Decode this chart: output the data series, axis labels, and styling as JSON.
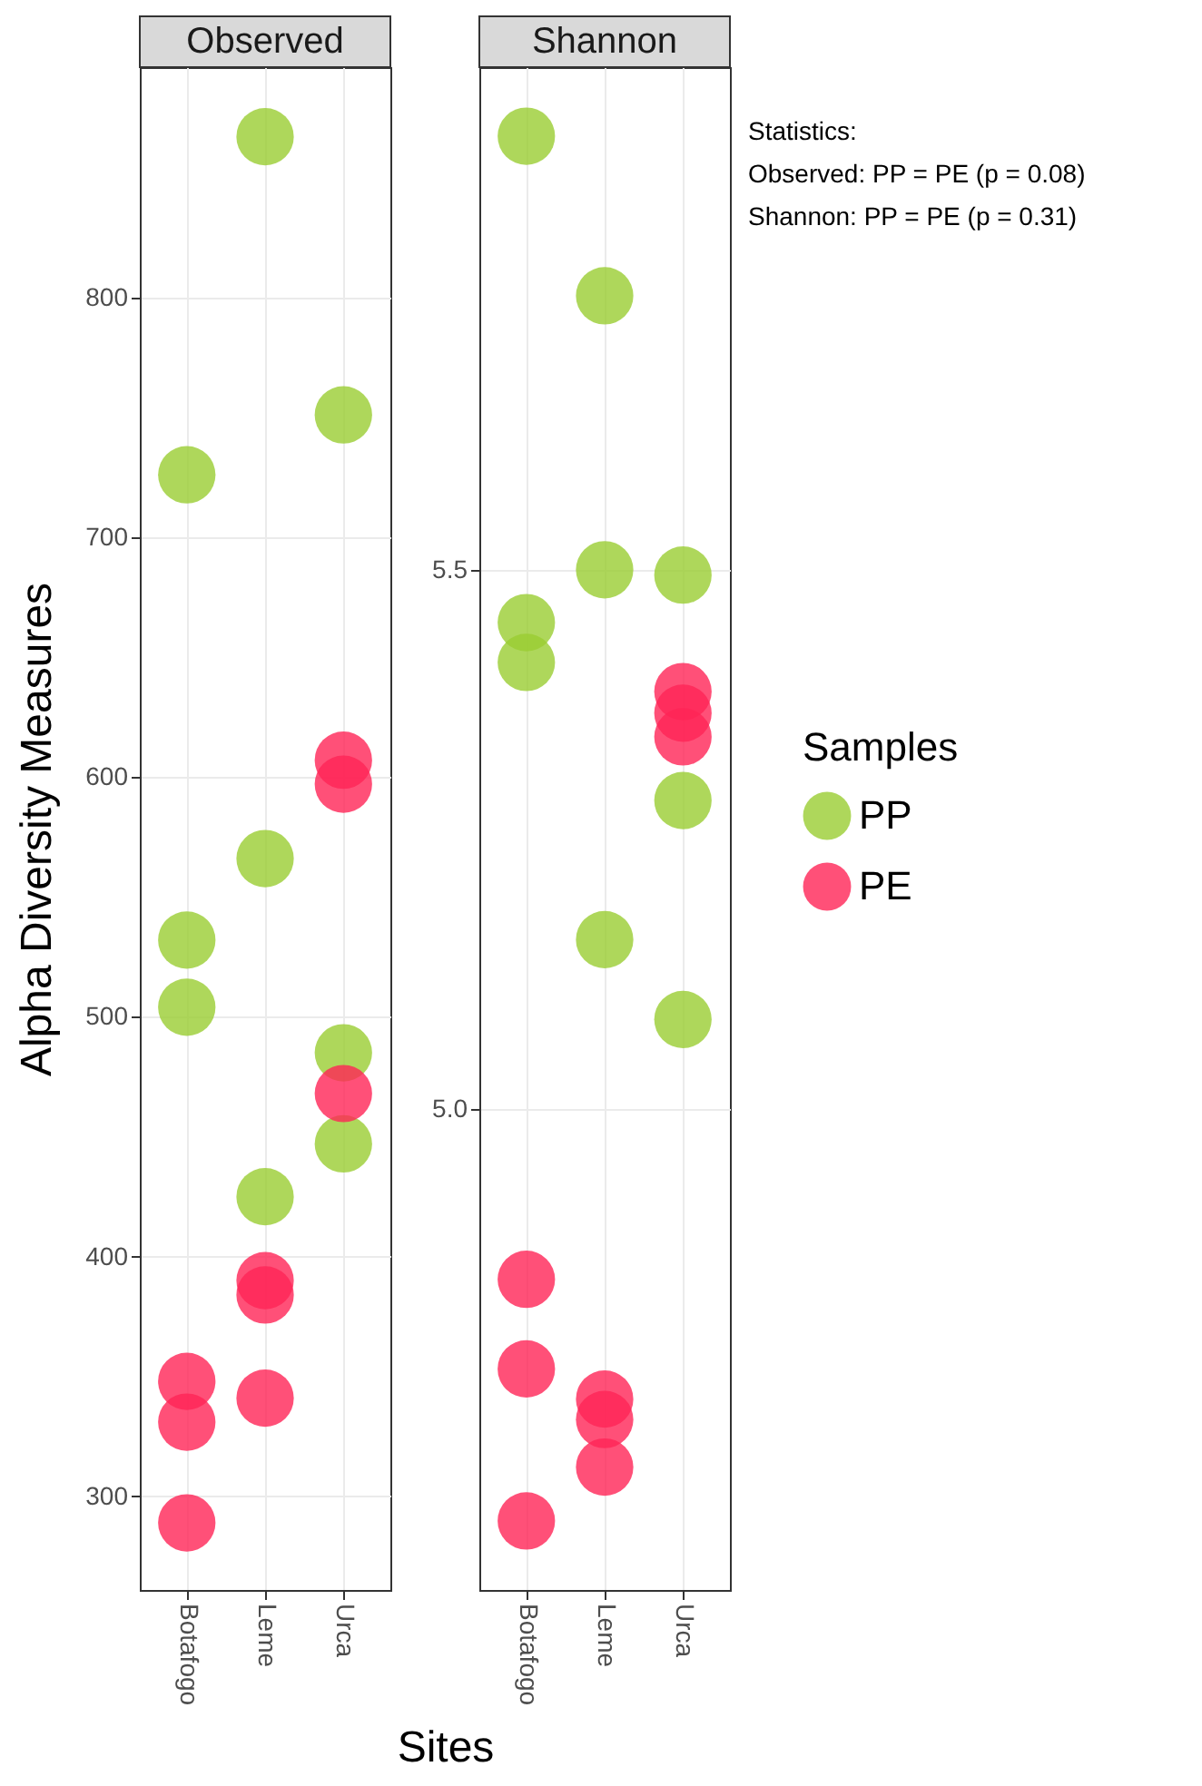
{
  "chart_data": [
    {
      "type": "scatter",
      "title": "Observed",
      "ylabel": "Alpha Diversity Measures",
      "xlabel": "Sites",
      "categories": [
        "Botafogo",
        "Leme",
        "Urca"
      ],
      "ylim": [
        261,
        896
      ],
      "yticks": [
        300,
        400,
        500,
        600,
        700,
        800
      ],
      "grid": true,
      "marker": "circle",
      "legend": "right",
      "series": [
        {
          "name": "PP",
          "color": "#9acd32",
          "x": [
            "Botafogo",
            "Botafogo",
            "Botafogo",
            "Leme",
            "Leme",
            "Leme",
            "Urca",
            "Urca",
            "Urca"
          ],
          "values": [
            726,
            532,
            504,
            867,
            566,
            425,
            751,
            485,
            447
          ]
        },
        {
          "name": "PE",
          "color": "#ff2456",
          "x": [
            "Botafogo",
            "Botafogo",
            "Botafogo",
            "Leme",
            "Leme",
            "Leme",
            "Urca",
            "Urca",
            "Urca"
          ],
          "values": [
            348,
            331,
            289,
            390,
            384,
            341,
            607,
            597,
            468
          ]
        }
      ]
    },
    {
      "type": "scatter",
      "title": "Shannon",
      "categories": [
        "Botafogo",
        "Leme",
        "Urca"
      ],
      "ylim": [
        4.554,
        5.966
      ],
      "yticks": [
        {
          "value": 5,
          "label": "5.0"
        },
        5.5
      ],
      "grid": true,
      "marker": "circle",
      "legend": "right",
      "legend_title": "Samples",
      "annotations": [
        "Statistics:",
        "Observed: PP = PE (p = 0.08)",
        "Shannon: PP = PE (p = 0.31)"
      ],
      "series": [
        {
          "name": "PP",
          "color": "#9acd32",
          "x": [
            "Botafogo",
            "Botafogo",
            "Botafogo",
            "Leme",
            "Leme",
            "Leme",
            "Urca",
            "Urca",
            "Urca"
          ],
          "values": [
            5.902,
            5.451,
            5.414,
            5.754,
            5.5,
            5.157,
            5.495,
            5.286,
            5.083
          ]
        },
        {
          "name": "PE",
          "color": "#ff2456",
          "x": [
            "Botafogo",
            "Botafogo",
            "Botafogo",
            "Leme",
            "Leme",
            "Leme",
            "Urca",
            "Urca",
            "Urca"
          ],
          "values": [
            4.842,
            4.759,
            4.618,
            4.731,
            4.712,
            4.668,
            5.387,
            5.367,
            5.345
          ]
        }
      ]
    }
  ]
}
